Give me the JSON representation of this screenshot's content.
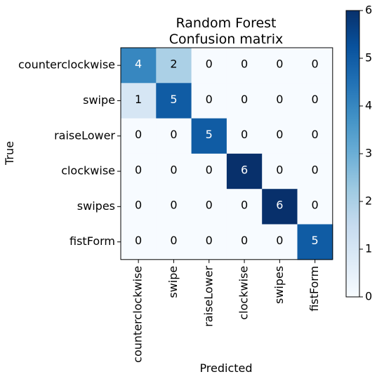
{
  "chart_data": {
    "type": "heatmap",
    "title_line1": "Random Forest",
    "title_line2": "Confusion matrix",
    "xlabel": "Predicted",
    "ylabel": "True",
    "row_labels": [
      "counterclockwise",
      "swipe",
      "raiseLower",
      "clockwise",
      "swipes",
      "fistForm"
    ],
    "col_labels": [
      "counterclockwise",
      "swipe",
      "raiseLower",
      "clockwise",
      "swipes",
      "fistForm"
    ],
    "matrix": [
      [
        4,
        2,
        0,
        0,
        0,
        0
      ],
      [
        1,
        5,
        0,
        0,
        0,
        0
      ],
      [
        0,
        0,
        5,
        0,
        0,
        0
      ],
      [
        0,
        0,
        0,
        6,
        0,
        0
      ],
      [
        0,
        0,
        0,
        0,
        6,
        0
      ],
      [
        0,
        0,
        0,
        0,
        0,
        5
      ]
    ],
    "colormap": "Blues",
    "vmin": 0,
    "vmax": 6,
    "colorbar_ticks": [
      "0",
      "1",
      "2",
      "3",
      "4",
      "5",
      "6"
    ]
  }
}
